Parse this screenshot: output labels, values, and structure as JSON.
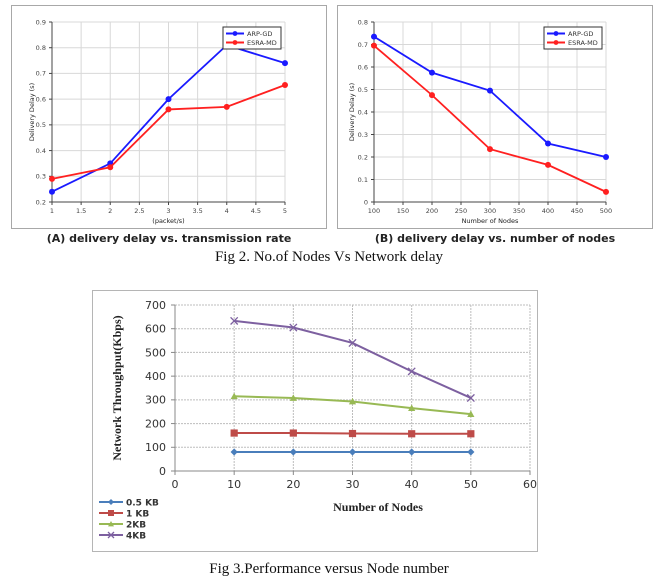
{
  "figure2": {
    "caption": "Fig 2. No.of Nodes Vs Network delay",
    "subcaption_a": "(A) delivery delay vs. transmission rate",
    "subcaption_b": "(B) delivery delay vs. number of nodes"
  },
  "figure3": {
    "caption": "Fig 3.Performance versus Node number"
  },
  "chart_data": [
    {
      "id": "A",
      "type": "line",
      "title": "",
      "xlabel": "(packet/s)",
      "ylabel": "Delivery Delay (s)",
      "x": [
        1,
        2,
        3,
        4,
        5
      ],
      "xlim": [
        1,
        5
      ],
      "ylim": [
        0.2,
        0.9
      ],
      "xticks": [
        1,
        1.5,
        2,
        2.5,
        3,
        3.5,
        4,
        4.5,
        5
      ],
      "xtick_labels": [
        "1",
        "1.5",
        "2",
        "2.5",
        "3",
        "3.5",
        "4",
        "4.5",
        "5"
      ],
      "yticks": [
        0.2,
        0.3,
        0.4,
        0.5,
        0.6,
        0.7,
        0.8,
        0.9
      ],
      "ytick_labels": [
        "0.2",
        "0.3",
        "0.4",
        "0.5",
        "0.6",
        "0.7",
        "0.8",
        "0.9"
      ],
      "grid": true,
      "legend_position": "top-right",
      "series": [
        {
          "name": "ARP-GD",
          "color": "#1a1aff",
          "marker": "circle",
          "values": [
            0.24,
            0.35,
            0.6,
            0.81,
            0.74
          ]
        },
        {
          "name": "ESRA-MD",
          "color": "#ff2020",
          "marker": "circle",
          "values": [
            0.29,
            0.335,
            0.56,
            0.57,
            0.655
          ]
        }
      ]
    },
    {
      "id": "B",
      "type": "line",
      "title": "",
      "xlabel": "Number of Nodes",
      "ylabel": "Delivery Delay (s)",
      "x": [
        100,
        200,
        300,
        400,
        500
      ],
      "xlim": [
        100,
        500
      ],
      "ylim": [
        0,
        0.8
      ],
      "xticks": [
        100,
        150,
        200,
        250,
        300,
        350,
        400,
        450,
        500
      ],
      "xtick_labels": [
        "100",
        "150",
        "200",
        "250",
        "300",
        "350",
        "400",
        "450",
        "500"
      ],
      "yticks": [
        0,
        0.1,
        0.2,
        0.3,
        0.4,
        0.5,
        0.6,
        0.7,
        0.8
      ],
      "ytick_labels": [
        "0",
        "0.1",
        "0.2",
        "0.3",
        "0.4",
        "0.5",
        "0.6",
        "0.7",
        "0.8"
      ],
      "grid": true,
      "legend_position": "top-right",
      "series": [
        {
          "name": "ARP-GD",
          "color": "#1a1aff",
          "marker": "circle",
          "values": [
            0.735,
            0.575,
            0.495,
            0.26,
            0.2
          ]
        },
        {
          "name": "ESRA-MD",
          "color": "#ff2020",
          "marker": "circle",
          "values": [
            0.695,
            0.475,
            0.235,
            0.165,
            0.045
          ]
        }
      ]
    },
    {
      "id": "C",
      "type": "line",
      "title": "",
      "xlabel": "Number of Nodes",
      "ylabel": "Network Throughput(Kbps)",
      "x": [
        10,
        20,
        30,
        40,
        50
      ],
      "xlim": [
        0,
        60
      ],
      "ylim": [
        0,
        700
      ],
      "xticks": [
        0,
        10,
        20,
        30,
        40,
        50,
        60
      ],
      "xtick_labels": [
        "0",
        "10",
        "20",
        "30",
        "40",
        "50",
        "60"
      ],
      "yticks": [
        0,
        100,
        200,
        300,
        400,
        500,
        600,
        700
      ],
      "ytick_labels": [
        "0",
        "100",
        "200",
        "300",
        "400",
        "500",
        "600",
        "700"
      ],
      "grid": true,
      "legend_position": "bottom-left",
      "series": [
        {
          "name": "0.5 KB",
          "color": "#4a7ebb",
          "marker": "diamond",
          "values": [
            80,
            80,
            80,
            80,
            80
          ]
        },
        {
          "name": "1 KB",
          "color": "#be4b48",
          "marker": "square",
          "values": [
            160,
            160,
            158,
            157,
            157
          ]
        },
        {
          "name": "2KB",
          "color": "#98b954",
          "marker": "triangle",
          "values": [
            315,
            308,
            293,
            265,
            240
          ]
        },
        {
          "name": "4KB",
          "color": "#7d60a0",
          "marker": "x",
          "values": [
            633,
            605,
            540,
            420,
            308
          ]
        }
      ]
    }
  ]
}
